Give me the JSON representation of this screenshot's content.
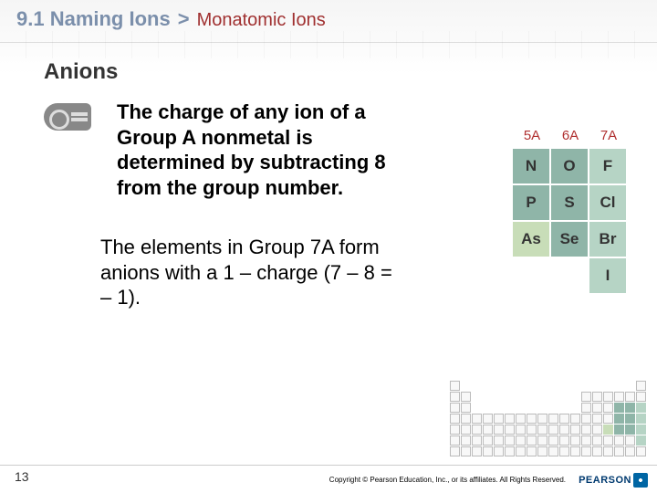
{
  "header": {
    "chapter": "9.1 Naming Ions",
    "chevron": ">",
    "subtitle": "Monatomic Ions"
  },
  "section_title": "Anions",
  "main_text": "The charge of any ion of a Group A nonmetal is determined by subtracting 8 from the group number.",
  "sub_text": "The elements in Group 7A form anions with a 1 – charge (7 – 8 = – 1).",
  "pt_headers": [
    "5A",
    "6A",
    "7A"
  ],
  "pt_grid": [
    [
      {
        "s": "N",
        "c": "c-g1"
      },
      {
        "s": "O",
        "c": "c-g1"
      },
      {
        "s": "F",
        "c": "c-g2"
      }
    ],
    [
      {
        "s": "P",
        "c": "c-g1"
      },
      {
        "s": "S",
        "c": "c-g1"
      },
      {
        "s": "Cl",
        "c": "c-g2"
      }
    ],
    [
      {
        "s": "As",
        "c": "c-g3"
      },
      {
        "s": "Se",
        "c": "c-g1"
      },
      {
        "s": "Br",
        "c": "c-g2"
      }
    ],
    [
      {
        "s": "",
        "c": "c-empty"
      },
      {
        "s": "",
        "c": "c-empty"
      },
      {
        "s": "I",
        "c": "c-g2"
      }
    ]
  ],
  "page_num": "13",
  "copyright": "Copyright © Pearson Education, Inc., or its affiliates. All Rights Reserved.",
  "logo_text": "PEARSON"
}
